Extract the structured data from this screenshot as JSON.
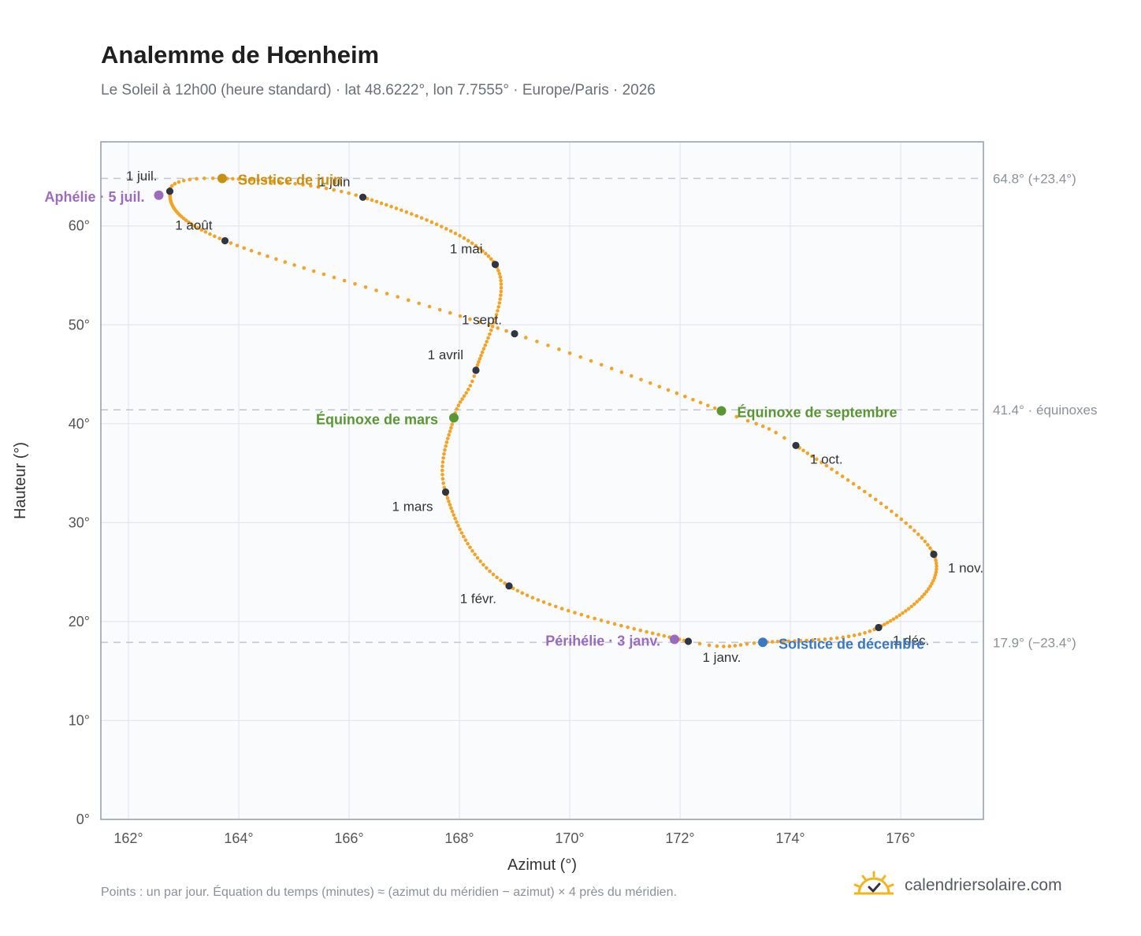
{
  "title": "Analemme de Hœnheim",
  "subtitle": "Le Soleil à 12h00 (heure standard) · lat 48.6222°, lon 7.7555° · Europe/Paris · 2026",
  "footnote": "Points : un par jour. Équation du temps (minutes) ≈ (azimut du méridien − azimut) × 4 près du méridien.",
  "brand": {
    "name": "calendriersolaire.com",
    "icon": "sun-check-logo-icon"
  },
  "colors": {
    "curve": "#f2a42a",
    "month_point": "#2f3542",
    "solstice_june": "#c8900f",
    "solstice_december": "#3b78c0",
    "equinox": "#5a9634",
    "apsis": "#9b6bbd",
    "refline": "#c4c9d2",
    "plot_bg": "#f9fbfd",
    "grid": "#e3e7ed"
  },
  "chart_data": {
    "type": "scatter",
    "title": "Analemme de Hœnheim",
    "xlabel": "Azimut (°)",
    "ylabel": "Hauteur (°)",
    "xlim": [
      161.5,
      177.5
    ],
    "ylim": [
      0,
      68.5
    ],
    "x_ticks": [
      "162°",
      "164°",
      "166°",
      "168°",
      "170°",
      "172°",
      "174°",
      "176°"
    ],
    "y_ticks": [
      "0°",
      "10°",
      "20°",
      "30°",
      "40°",
      "50°",
      "60°"
    ],
    "grid": true,
    "daily_points_note": "un par jour",
    "months": [
      {
        "label": "1 janv.",
        "az": 172.15,
        "alt": 18.0
      },
      {
        "label": "1 févr.",
        "az": 168.9,
        "alt": 23.6
      },
      {
        "label": "1 mars",
        "az": 167.75,
        "alt": 33.1
      },
      {
        "label": "1 avril",
        "az": 168.3,
        "alt": 45.4
      },
      {
        "label": "1 mai",
        "az": 168.65,
        "alt": 56.1
      },
      {
        "label": "1 juin",
        "az": 166.25,
        "alt": 62.9
      },
      {
        "label": "1 juil.",
        "az": 162.75,
        "alt": 63.5
      },
      {
        "label": "1 août",
        "az": 163.75,
        "alt": 58.5
      },
      {
        "label": "1 sept.",
        "az": 169.0,
        "alt": 49.1
      },
      {
        "label": "1 oct.",
        "az": 174.1,
        "alt": 37.8
      },
      {
        "label": "1 nov.",
        "az": 176.6,
        "alt": 26.8
      },
      {
        "label": "1 déc.",
        "az": 175.6,
        "alt": 19.4
      }
    ],
    "events": [
      {
        "label": "Solstice de juin",
        "az": 163.7,
        "alt": 64.8,
        "kind": "solstice_june"
      },
      {
        "label": "Solstice de décembre",
        "az": 173.5,
        "alt": 17.9,
        "kind": "solstice_december"
      },
      {
        "label": "Équinoxe de mars",
        "az": 167.9,
        "alt": 40.6,
        "kind": "equinox"
      },
      {
        "label": "Équinoxe de septembre",
        "az": 172.75,
        "alt": 41.3,
        "kind": "equinox"
      },
      {
        "label": "Aphélie · 5 juil.",
        "az": 162.55,
        "alt": 63.1,
        "kind": "apsis"
      },
      {
        "label": "Périhélie · 3 janv.",
        "az": 171.9,
        "alt": 18.2,
        "kind": "apsis"
      }
    ],
    "reference_lines": [
      {
        "alt": 64.8,
        "label": "64.8° (+23.4°)"
      },
      {
        "alt": 41.4,
        "label": "41.4° · équinoxes"
      },
      {
        "alt": 17.9,
        "label": "17.9° (−23.4°)"
      }
    ]
  }
}
